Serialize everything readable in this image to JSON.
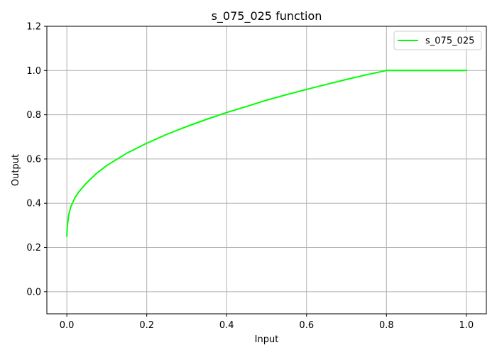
{
  "chart_data": {
    "type": "line",
    "title": "s_075_025 function",
    "xlabel": "Input",
    "ylabel": "Output",
    "xlim": [
      -0.05,
      1.05
    ],
    "ylim": [
      -0.1,
      1.2
    ],
    "xticks": [
      0.0,
      0.2,
      0.4,
      0.6,
      0.8,
      1.0
    ],
    "xtick_labels": [
      "0.0",
      "0.2",
      "0.4",
      "0.6",
      "0.8",
      "1.0"
    ],
    "yticks": [
      0.0,
      0.2,
      0.4,
      0.6,
      0.8,
      1.0,
      1.2
    ],
    "ytick_labels": [
      "0.0",
      "0.2",
      "0.4",
      "0.6",
      "0.8",
      "1.0",
      "1.2"
    ],
    "grid": true,
    "legend_position": "top-right",
    "series": [
      {
        "name": "s_075_025",
        "color": "#00ff00",
        "x": [
          0.0,
          0.001,
          0.005,
          0.01,
          0.02,
          0.03,
          0.05,
          0.075,
          0.1,
          0.15,
          0.2,
          0.25,
          0.3,
          0.35,
          0.4,
          0.45,
          0.5,
          0.55,
          0.6,
          0.65,
          0.7,
          0.75,
          0.8,
          0.85,
          0.9,
          0.95,
          1.0
        ],
        "y": [
          0.25,
          0.2918,
          0.3508,
          0.3839,
          0.4238,
          0.4516,
          0.4932,
          0.5359,
          0.5706,
          0.6261,
          0.6711,
          0.7113,
          0.7466,
          0.7795,
          0.8102,
          0.8376,
          0.8659,
          0.8909,
          0.9146,
          0.9373,
          0.9596,
          0.9808,
          1.0,
          1.0,
          1.0,
          1.0,
          1.0
        ]
      }
    ]
  }
}
